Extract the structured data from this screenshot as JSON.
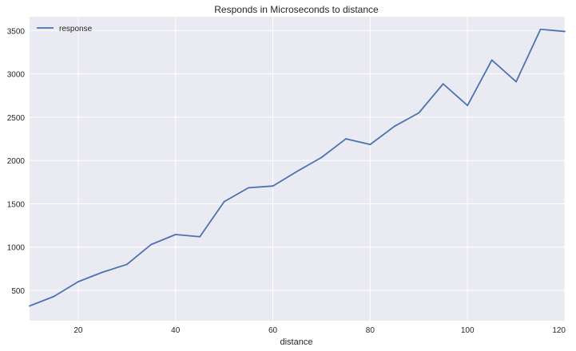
{
  "chart_data": {
    "type": "line",
    "title": "Responds in Microseconds to distance",
    "xlabel": "distance",
    "ylabel": "",
    "xlim": [
      10,
      120
    ],
    "ylim": [
      150,
      3660
    ],
    "xticks": [
      20,
      40,
      60,
      80,
      100,
      120
    ],
    "yticks": [
      500,
      1000,
      1500,
      2000,
      2500,
      3000,
      3500
    ],
    "grid": true,
    "legend_position": "top-left",
    "colors": {
      "background": "#eaeaf2",
      "grid": "#ffffff",
      "line": "#4c72b0"
    },
    "series": [
      {
        "name": "response",
        "x": [
          10,
          15,
          20,
          25,
          30,
          35,
          40,
          45,
          50,
          55,
          60,
          65,
          70,
          75,
          80,
          85,
          90,
          95,
          100,
          105,
          110,
          115,
          120
        ],
        "values": [
          320,
          430,
          600,
          710,
          800,
          1030,
          1145,
          1120,
          1525,
          1685,
          1705,
          1875,
          2035,
          2250,
          2185,
          2395,
          2550,
          2885,
          2635,
          3160,
          2910,
          3515,
          3490
        ]
      }
    ]
  }
}
